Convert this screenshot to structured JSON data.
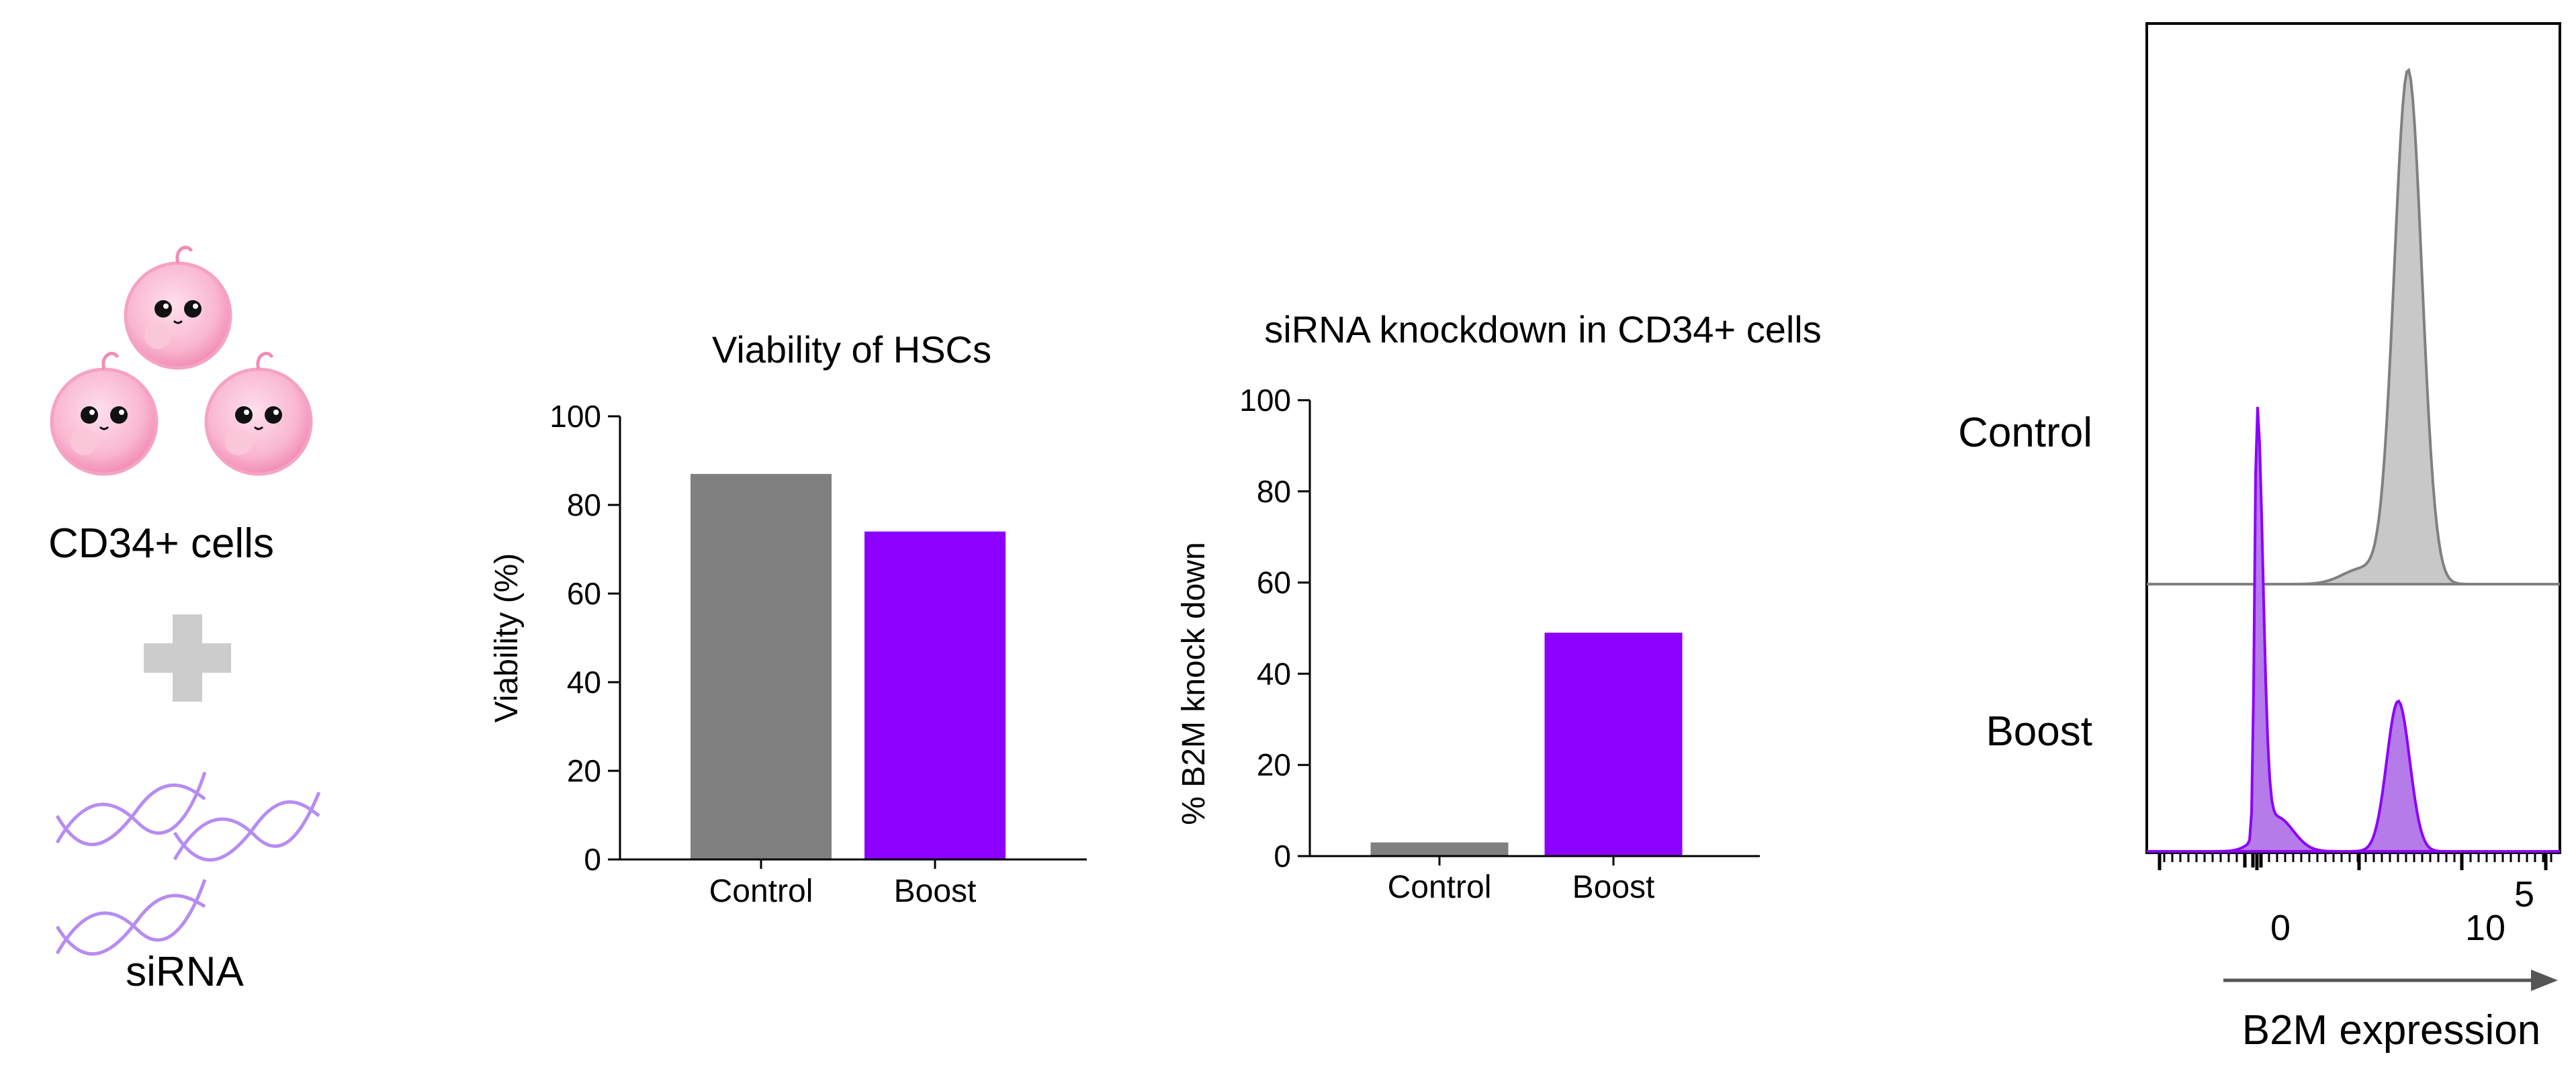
{
  "colors": {
    "control_gray": "#808080",
    "boost_purple": "#8B00FF",
    "cell_pink": "#F7A8C7",
    "dna_purple": "#B68CF2",
    "plus_gray": "#CCCCCC",
    "flow_control_fill": "#C8C8C8",
    "flow_boost_fill": "#B57BE8"
  },
  "schematic": {
    "cells_label": "CD34+ cells",
    "sirna_label": "siRNA",
    "cell_icon": "cell-icon",
    "plus_icon": "plus-icon",
    "dna_icon": "dna-helix-icon"
  },
  "chart_data": [
    {
      "type": "bar",
      "title": "Viability of HSCs",
      "categories": [
        "Control",
        "Boost"
      ],
      "values": [
        87,
        74
      ],
      "colors": [
        "#808080",
        "#8B00FF"
      ],
      "xlabel": "",
      "ylabel": "Viability (%)",
      "ylim": [
        0,
        100
      ],
      "yticks": [
        "0",
        "20",
        "40",
        "60",
        "80",
        "100"
      ]
    },
    {
      "type": "bar",
      "title": "siRNA knockdown in CD34+ cells",
      "categories": [
        "Control",
        "Boost"
      ],
      "values": [
        3,
        49
      ],
      "colors": [
        "#808080",
        "#8B00FF"
      ],
      "xlabel": "",
      "ylabel": "% B2M knock down",
      "ylim": [
        0,
        100
      ],
      "yticks": [
        "0",
        "20",
        "40",
        "60",
        "80",
        "100"
      ]
    },
    {
      "type": "area",
      "title": "",
      "series": [
        {
          "name": "Control",
          "peak_x": 4.6,
          "peak_height": 1.0,
          "color": "#808080"
        },
        {
          "name": "Boost",
          "peaks": [
            {
              "x": 0.0,
              "height": 1.0
            },
            {
              "x": 4.3,
              "height": 0.35
            }
          ],
          "color": "#8B00FF"
        }
      ],
      "xlabel": "B2M expression",
      "xtick_labels": [
        "0",
        "10"
      ],
      "xtick_superscript": "5"
    }
  ]
}
